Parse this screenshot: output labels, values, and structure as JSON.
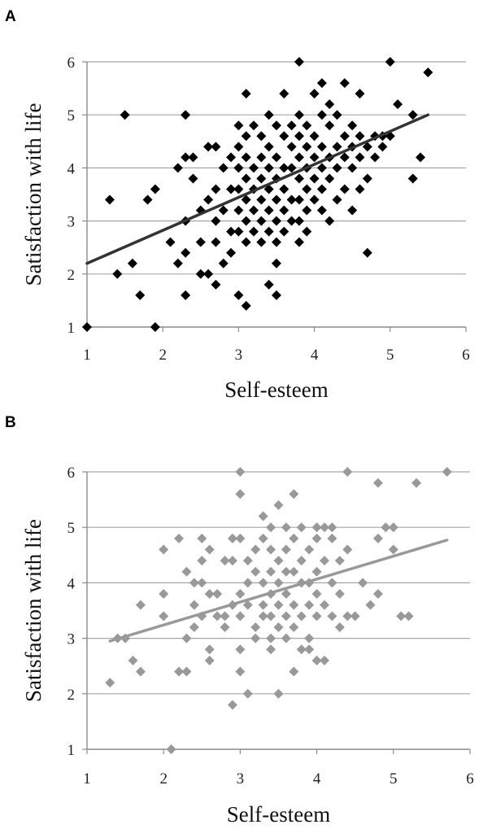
{
  "panels": [
    {
      "letter": "A"
    },
    {
      "letter": "B"
    }
  ],
  "chart_data": [
    {
      "type": "scatter",
      "panel": "A",
      "xlabel": "Self-esteem",
      "ylabel": "Satisfaction with life",
      "xlim": [
        1,
        6
      ],
      "ylim": [
        1,
        6
      ],
      "xticks": [
        "1",
        "2",
        "3",
        "4",
        "5",
        "6"
      ],
      "yticks": [
        "1",
        "2",
        "3",
        "4",
        "5",
        "6"
      ],
      "grid": "horizontal",
      "marker_color": "#000000",
      "line_color": "#333333",
      "trendline": {
        "x": [
          1.0,
          5.5
        ],
        "y": [
          2.2,
          5.0
        ]
      },
      "points": [
        [
          1.0,
          1.0
        ],
        [
          1.3,
          3.4
        ],
        [
          1.4,
          2.0
        ],
        [
          1.5,
          5.0
        ],
        [
          1.6,
          2.2
        ],
        [
          1.7,
          1.6
        ],
        [
          1.8,
          3.4
        ],
        [
          1.9,
          3.6
        ],
        [
          1.9,
          1.0
        ],
        [
          2.1,
          2.6
        ],
        [
          2.2,
          4.0
        ],
        [
          2.2,
          2.2
        ],
        [
          2.3,
          4.2
        ],
        [
          2.3,
          5.0
        ],
        [
          2.3,
          3.0
        ],
        [
          2.3,
          1.6
        ],
        [
          2.3,
          2.4
        ],
        [
          2.4,
          4.2
        ],
        [
          2.4,
          3.8
        ],
        [
          2.5,
          3.2
        ],
        [
          2.5,
          2.6
        ],
        [
          2.5,
          2.0
        ],
        [
          2.6,
          4.4
        ],
        [
          2.6,
          3.4
        ],
        [
          2.6,
          2.0
        ],
        [
          2.7,
          4.4
        ],
        [
          2.7,
          3.6
        ],
        [
          2.7,
          3.0
        ],
        [
          2.7,
          2.6
        ],
        [
          2.7,
          1.8
        ],
        [
          2.8,
          4.0
        ],
        [
          2.8,
          3.2
        ],
        [
          2.8,
          2.2
        ],
        [
          2.9,
          4.2
        ],
        [
          2.9,
          3.6
        ],
        [
          2.9,
          2.8
        ],
        [
          2.9,
          2.4
        ],
        [
          3.0,
          4.8
        ],
        [
          3.0,
          4.4
        ],
        [
          3.0,
          4.0
        ],
        [
          3.0,
          3.6
        ],
        [
          3.0,
          3.2
        ],
        [
          3.0,
          2.8
        ],
        [
          3.0,
          1.6
        ],
        [
          3.1,
          5.4
        ],
        [
          3.1,
          4.6
        ],
        [
          3.1,
          4.2
        ],
        [
          3.1,
          3.8
        ],
        [
          3.1,
          3.4
        ],
        [
          3.1,
          3.0
        ],
        [
          3.1,
          2.6
        ],
        [
          3.1,
          1.4
        ],
        [
          3.2,
          4.8
        ],
        [
          3.2,
          4.0
        ],
        [
          3.2,
          3.6
        ],
        [
          3.2,
          3.2
        ],
        [
          3.2,
          2.8
        ],
        [
          3.3,
          4.6
        ],
        [
          3.3,
          4.2
        ],
        [
          3.3,
          3.8
        ],
        [
          3.3,
          3.4
        ],
        [
          3.3,
          3.0
        ],
        [
          3.3,
          2.6
        ],
        [
          3.4,
          5.0
        ],
        [
          3.4,
          4.4
        ],
        [
          3.4,
          4.0
        ],
        [
          3.4,
          3.6
        ],
        [
          3.4,
          3.2
        ],
        [
          3.4,
          2.8
        ],
        [
          3.4,
          1.8
        ],
        [
          3.5,
          4.8
        ],
        [
          3.5,
          4.2
        ],
        [
          3.5,
          3.8
        ],
        [
          3.5,
          3.4
        ],
        [
          3.5,
          3.0
        ],
        [
          3.5,
          2.6
        ],
        [
          3.5,
          2.2
        ],
        [
          3.5,
          1.6
        ],
        [
          3.6,
          5.4
        ],
        [
          3.6,
          4.6
        ],
        [
          3.6,
          4.0
        ],
        [
          3.6,
          3.6
        ],
        [
          3.6,
          3.2
        ],
        [
          3.6,
          2.8
        ],
        [
          3.7,
          4.8
        ],
        [
          3.7,
          4.4
        ],
        [
          3.7,
          4.0
        ],
        [
          3.7,
          3.4
        ],
        [
          3.7,
          3.0
        ],
        [
          3.8,
          6.0
        ],
        [
          3.8,
          5.0
        ],
        [
          3.8,
          4.6
        ],
        [
          3.8,
          4.2
        ],
        [
          3.8,
          3.8
        ],
        [
          3.8,
          3.4
        ],
        [
          3.8,
          3.0
        ],
        [
          3.8,
          2.6
        ],
        [
          3.9,
          4.8
        ],
        [
          3.9,
          4.4
        ],
        [
          3.9,
          4.0
        ],
        [
          3.9,
          3.6
        ],
        [
          3.9,
          3.2
        ],
        [
          3.9,
          2.8
        ],
        [
          4.0,
          5.4
        ],
        [
          4.0,
          4.6
        ],
        [
          4.0,
          4.2
        ],
        [
          4.0,
          3.8
        ],
        [
          4.0,
          3.4
        ],
        [
          4.1,
          5.6
        ],
        [
          4.1,
          5.0
        ],
        [
          4.1,
          4.4
        ],
        [
          4.1,
          4.0
        ],
        [
          4.1,
          3.6
        ],
        [
          4.1,
          3.2
        ],
        [
          4.2,
          5.2
        ],
        [
          4.2,
          4.8
        ],
        [
          4.2,
          4.2
        ],
        [
          4.2,
          3.8
        ],
        [
          4.2,
          3.0
        ],
        [
          4.3,
          5.0
        ],
        [
          4.3,
          4.4
        ],
        [
          4.3,
          4.0
        ],
        [
          4.3,
          3.4
        ],
        [
          4.4,
          5.6
        ],
        [
          4.4,
          4.6
        ],
        [
          4.4,
          4.2
        ],
        [
          4.4,
          3.6
        ],
        [
          4.5,
          4.8
        ],
        [
          4.5,
          4.4
        ],
        [
          4.5,
          4.0
        ],
        [
          4.5,
          3.2
        ],
        [
          4.6,
          5.4
        ],
        [
          4.6,
          4.6
        ],
        [
          4.6,
          4.2
        ],
        [
          4.6,
          3.6
        ],
        [
          4.7,
          4.4
        ],
        [
          4.7,
          3.8
        ],
        [
          4.7,
          2.4
        ],
        [
          4.8,
          4.6
        ],
        [
          4.8,
          4.2
        ],
        [
          4.9,
          4.6
        ],
        [
          4.9,
          4.4
        ],
        [
          5.0,
          6.0
        ],
        [
          5.0,
          4.6
        ],
        [
          5.1,
          5.2
        ],
        [
          5.3,
          5.0
        ],
        [
          5.3,
          3.8
        ],
        [
          5.4,
          4.2
        ],
        [
          5.5,
          5.8
        ]
      ]
    },
    {
      "type": "scatter",
      "panel": "B",
      "xlabel": "Self-esteem",
      "ylabel": "Satisfaction with life",
      "xlim": [
        1,
        6
      ],
      "ylim": [
        1,
        6
      ],
      "xticks": [
        "1",
        "2",
        "3",
        "4",
        "5",
        "6"
      ],
      "yticks": [
        "1",
        "2",
        "3",
        "4",
        "5",
        "6"
      ],
      "grid": "horizontal",
      "marker_color": "#999999",
      "line_color": "#999999",
      "trendline": {
        "x": [
          1.3,
          5.7
        ],
        "y": [
          2.95,
          4.77
        ]
      },
      "points": [
        [
          1.3,
          2.2
        ],
        [
          1.4,
          3.0
        ],
        [
          1.5,
          3.0
        ],
        [
          1.6,
          2.6
        ],
        [
          1.7,
          3.6
        ],
        [
          1.7,
          2.4
        ],
        [
          2.0,
          4.6
        ],
        [
          2.0,
          3.8
        ],
        [
          2.0,
          3.4
        ],
        [
          2.1,
          1.0
        ],
        [
          2.2,
          4.8
        ],
        [
          2.2,
          2.4
        ],
        [
          2.3,
          4.2
        ],
        [
          2.3,
          2.4
        ],
        [
          2.3,
          3.0
        ],
        [
          2.4,
          4.0
        ],
        [
          2.4,
          3.2
        ],
        [
          2.4,
          3.6
        ],
        [
          2.5,
          4.8
        ],
        [
          2.5,
          4.4
        ],
        [
          2.5,
          4.0
        ],
        [
          2.5,
          3.4
        ],
        [
          2.6,
          4.6
        ],
        [
          2.6,
          3.8
        ],
        [
          2.6,
          2.8
        ],
        [
          2.6,
          2.6
        ],
        [
          2.7,
          3.8
        ],
        [
          2.7,
          3.4
        ],
        [
          2.8,
          4.4
        ],
        [
          2.8,
          3.4
        ],
        [
          2.8,
          3.2
        ],
        [
          2.9,
          4.8
        ],
        [
          2.9,
          4.4
        ],
        [
          2.9,
          3.6
        ],
        [
          2.9,
          1.8
        ],
        [
          3.0,
          6.0
        ],
        [
          3.0,
          5.6
        ],
        [
          3.0,
          4.8
        ],
        [
          3.0,
          3.8
        ],
        [
          3.0,
          3.4
        ],
        [
          3.0,
          2.8
        ],
        [
          3.0,
          2.4
        ],
        [
          3.1,
          4.4
        ],
        [
          3.1,
          4.0
        ],
        [
          3.1,
          3.6
        ],
        [
          3.1,
          2.0
        ],
        [
          3.2,
          4.6
        ],
        [
          3.2,
          4.2
        ],
        [
          3.2,
          3.2
        ],
        [
          3.2,
          3.0
        ],
        [
          3.3,
          5.2
        ],
        [
          3.3,
          4.8
        ],
        [
          3.3,
          4.0
        ],
        [
          3.3,
          3.6
        ],
        [
          3.3,
          3.4
        ],
        [
          3.4,
          5.0
        ],
        [
          3.4,
          4.6
        ],
        [
          3.4,
          4.2
        ],
        [
          3.4,
          3.8
        ],
        [
          3.4,
          3.4
        ],
        [
          3.4,
          3.0
        ],
        [
          3.4,
          2.8
        ],
        [
          3.5,
          5.4
        ],
        [
          3.5,
          4.4
        ],
        [
          3.5,
          4.0
        ],
        [
          3.5,
          3.6
        ],
        [
          3.5,
          3.2
        ],
        [
          3.5,
          2.0
        ],
        [
          3.6,
          5.0
        ],
        [
          3.6,
          4.6
        ],
        [
          3.6,
          4.2
        ],
        [
          3.6,
          3.8
        ],
        [
          3.6,
          3.4
        ],
        [
          3.6,
          3.0
        ],
        [
          3.7,
          5.6
        ],
        [
          3.7,
          4.8
        ],
        [
          3.7,
          4.2
        ],
        [
          3.7,
          3.6
        ],
        [
          3.7,
          3.2
        ],
        [
          3.7,
          2.4
        ],
        [
          3.8,
          5.0
        ],
        [
          3.8,
          4.4
        ],
        [
          3.8,
          4.0
        ],
        [
          3.8,
          3.4
        ],
        [
          3.8,
          2.8
        ],
        [
          3.9,
          4.6
        ],
        [
          3.9,
          4.0
        ],
        [
          3.9,
          3.6
        ],
        [
          3.9,
          3.0
        ],
        [
          3.9,
          2.8
        ],
        [
          4.0,
          5.0
        ],
        [
          4.0,
          4.8
        ],
        [
          4.0,
          4.2
        ],
        [
          4.0,
          3.8
        ],
        [
          4.0,
          3.4
        ],
        [
          4.0,
          2.6
        ],
        [
          4.1,
          5.0
        ],
        [
          4.1,
          4.4
        ],
        [
          4.1,
          3.6
        ],
        [
          4.1,
          2.6
        ],
        [
          4.2,
          5.0
        ],
        [
          4.2,
          4.8
        ],
        [
          4.2,
          4.0
        ],
        [
          4.2,
          3.4
        ],
        [
          4.3,
          4.4
        ],
        [
          4.3,
          3.8
        ],
        [
          4.3,
          3.2
        ],
        [
          4.4,
          6.0
        ],
        [
          4.4,
          4.6
        ],
        [
          4.4,
          3.4
        ],
        [
          4.5,
          3.4
        ],
        [
          4.6,
          4.0
        ],
        [
          4.7,
          3.6
        ],
        [
          4.8,
          5.8
        ],
        [
          4.8,
          4.8
        ],
        [
          4.8,
          3.8
        ],
        [
          4.9,
          5.0
        ],
        [
          5.0,
          5.0
        ],
        [
          5.0,
          4.6
        ],
        [
          5.1,
          3.4
        ],
        [
          5.2,
          3.4
        ],
        [
          5.3,
          5.8
        ],
        [
          5.7,
          6.0
        ]
      ]
    }
  ]
}
